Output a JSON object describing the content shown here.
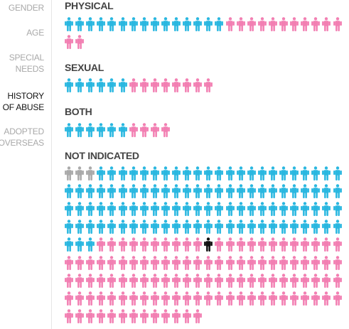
{
  "sidebar": {
    "items": [
      {
        "label_lines": [
          "GENDER"
        ],
        "active": false
      },
      {
        "label_lines": [
          "AGE"
        ],
        "active": false
      },
      {
        "label_lines": [
          "SPECIAL",
          "NEEDS"
        ],
        "active": false
      },
      {
        "label_lines": [
          "HISTORY",
          "OF ABUSE"
        ],
        "active": true
      },
      {
        "label_lines": [
          "ADOPTED",
          "OVERSEAS"
        ],
        "active": false
      }
    ]
  },
  "colors": {
    "boy": "#29b7e0",
    "girl": "#f27fb2",
    "unknown": "#a9a9a9",
    "highlight": "#111111"
  },
  "chart_data": {
    "type": "icon-array",
    "categories": [
      "PHYSICAL",
      "SEXUAL",
      "BOTH",
      "NOT INDICATED"
    ],
    "series": [
      {
        "name": "PHYSICAL",
        "groups": [
          {
            "color": "boy",
            "count": 15
          },
          {
            "color": "girl",
            "count": 13
          }
        ]
      },
      {
        "name": "SEXUAL",
        "groups": [
          {
            "color": "boy",
            "count": 6
          },
          {
            "color": "girl",
            "count": 8
          }
        ]
      },
      {
        "name": "BOTH",
        "groups": [
          {
            "color": "boy",
            "count": 6
          },
          {
            "color": "girl",
            "count": 4
          }
        ]
      },
      {
        "name": "NOT INDICATED",
        "groups": [
          {
            "color": "unknown",
            "count": 3
          },
          {
            "color": "boy",
            "count": 104
          },
          {
            "color": "girl",
            "count": 10
          },
          {
            "color": "highlight",
            "count": 1
          },
          {
            "color": "girl",
            "count": 103
          }
        ]
      }
    ]
  }
}
